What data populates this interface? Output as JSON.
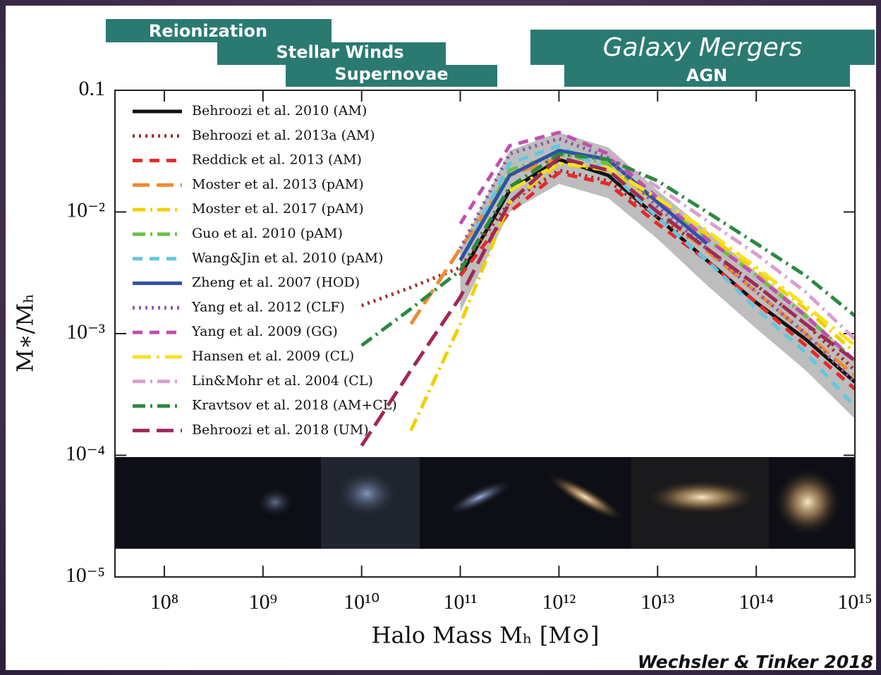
{
  "chart_data": {
    "type": "line",
    "feedback_labels": [
      "Reionization",
      "Stellar Winds",
      "Supernovae",
      "Galaxy Mergers",
      "AGN"
    ],
    "credit": "Wechsler & Tinker 2018",
    "xlabel": "Halo Mass Mₕ [M⊙]",
    "ylabel": "M∗/Mₕ",
    "log_x": true,
    "log_y": true,
    "xlim": [
      31600000,
      1000000000000000
    ],
    "ylim": [
      1e-05,
      0.1
    ],
    "xticks": [
      {
        "value": 100000000,
        "label": "10⁸"
      },
      {
        "value": 1000000000,
        "label": "10⁹"
      },
      {
        "value": 10000000000,
        "label": "10¹⁰"
      },
      {
        "value": 100000000000,
        "label": "10¹¹"
      },
      {
        "value": 1000000000000,
        "label": "10¹²"
      },
      {
        "value": 10000000000000,
        "label": "10¹³"
      },
      {
        "value": 100000000000000,
        "label": "10¹⁴"
      },
      {
        "value": 1000000000000000,
        "label": "10¹⁵"
      }
    ],
    "yticks": [
      {
        "value": 1e-05,
        "label": "10⁻⁵"
      },
      {
        "value": 0.0001,
        "label": "10⁻⁴"
      },
      {
        "value": 0.001,
        "label": "10⁻³"
      },
      {
        "value": 0.01,
        "label": "10⁻²"
      },
      0.1
    ],
    "legend": "upper left",
    "x": [
      10000000000,
      31600000000,
      100000000000,
      316000000000,
      1000000000000,
      3160000000000,
      10000000000000,
      31600000000000,
      100000000000000,
      316000000000000,
      1000000000000000
    ],
    "band": {
      "color": "#bdbdbd",
      "lower": [
        null,
        null,
        0.0015,
        0.01,
        0.017,
        0.013,
        0.006,
        0.0025,
        0.0011,
        0.0005,
        0.0002
      ],
      "upper": [
        null,
        null,
        0.005,
        0.032,
        0.045,
        0.034,
        0.015,
        0.007,
        0.0032,
        0.0015,
        0.0006
      ]
    },
    "series": [
      {
        "name": "Behroozi et al. 2010 (AM)",
        "color": "#111111",
        "style": "solid",
        "values": [
          null,
          null,
          0.003,
          0.015,
          0.027,
          0.02,
          0.009,
          0.004,
          0.0018,
          0.0009,
          0.0004
        ]
      },
      {
        "name": "Behroozi et al. 2013a (AM)",
        "color": "#a0302a",
        "style": "dotted",
        "values": [
          0.0017,
          0.0024,
          0.0035,
          0.012,
          0.022,
          0.018,
          0.009,
          0.005,
          0.0025,
          0.0012,
          0.0005
        ]
      },
      {
        "name": "Reddick et al. 2013 (AM)",
        "color": "#e8282a",
        "style": "dashed",
        "values": [
          null,
          null,
          0.003,
          0.01,
          0.021,
          0.017,
          0.008,
          0.004,
          0.0018,
          0.0008,
          0.00035
        ]
      },
      {
        "name": "Moster et al. 2013 (pAM)",
        "color": "#f08a30",
        "style": "longdash",
        "values": [
          null,
          0.0012,
          0.005,
          0.02,
          0.028,
          0.022,
          0.01,
          0.0048,
          0.0022,
          0.001,
          0.00045
        ]
      },
      {
        "name": "Moster et al. 2017 (pAM)",
        "color": "#f0d000",
        "style": "dashdot",
        "values": [
          null,
          0.00016,
          0.0012,
          0.012,
          0.025,
          0.022,
          0.012,
          0.0065,
          0.0033,
          0.0016,
          0.0007
        ]
      },
      {
        "name": "Guo et al. 2010 (pAM)",
        "color": "#6cc040",
        "style": "dashdot",
        "values": [
          null,
          null,
          0.004,
          0.022,
          0.03,
          0.025,
          0.012,
          0.006,
          0.003,
          0.0014,
          0.0006
        ]
      },
      {
        "name": "Wang&Jin et al. 2010 (pAM)",
        "color": "#60c8e0",
        "style": "dashed",
        "values": [
          null,
          null,
          0.004,
          0.025,
          0.035,
          0.022,
          0.009,
          0.004,
          0.0016,
          0.0007,
          0.00025
        ]
      },
      {
        "name": "Zheng et al. 2007 (HOD)",
        "color": "#3050a8",
        "style": "solid",
        "values": [
          null,
          null,
          0.004,
          0.02,
          0.032,
          0.027,
          0.012,
          0.0055,
          null,
          null,
          null
        ]
      },
      {
        "name": "Yang et al. 2012 (CLF)",
        "color": "#8a5aa8",
        "style": "dotted",
        "values": [
          null,
          null,
          0.005,
          0.03,
          0.04,
          0.028,
          0.011,
          0.005,
          0.0022,
          0.001,
          0.0004
        ]
      },
      {
        "name": "Yang et al. 2009 (GG)",
        "color": "#c050b0",
        "style": "dashed",
        "values": [
          null,
          null,
          0.008,
          0.035,
          0.045,
          0.03,
          0.013,
          0.006,
          0.003,
          0.0014,
          0.0006
        ]
      },
      {
        "name": "Hansen et al. 2009 (CL)",
        "color": "#f8e020",
        "style": "longdashdot",
        "values": [
          null,
          null,
          null,
          0.015,
          0.025,
          0.023,
          0.013,
          0.007,
          0.0035,
          0.0017,
          0.0008
        ]
      },
      {
        "name": "Lin&Mohr et al. 2004 (CL)",
        "color": "#d8a0d0",
        "style": "dashdot",
        "values": [
          null,
          null,
          null,
          null,
          null,
          0.03,
          0.016,
          0.0085,
          0.0045,
          0.0022,
          0.0009
        ]
      },
      {
        "name": "Kravtsov et al. 2018 (AM+CL)",
        "color": "#2a8a40",
        "style": "dashdot",
        "values": [
          0.0008,
          0.0016,
          0.0033,
          0.016,
          0.03,
          0.027,
          0.018,
          0.01,
          0.0055,
          0.003,
          0.0014
        ]
      },
      {
        "name": "Behroozi et al. 2018 (UM)",
        "color": "#a02858",
        "style": "longdash",
        "values": [
          0.00012,
          0.0005,
          0.002,
          0.012,
          0.028,
          0.022,
          0.01,
          0.005,
          0.0025,
          0.0012,
          0.0006
        ]
      }
    ]
  }
}
